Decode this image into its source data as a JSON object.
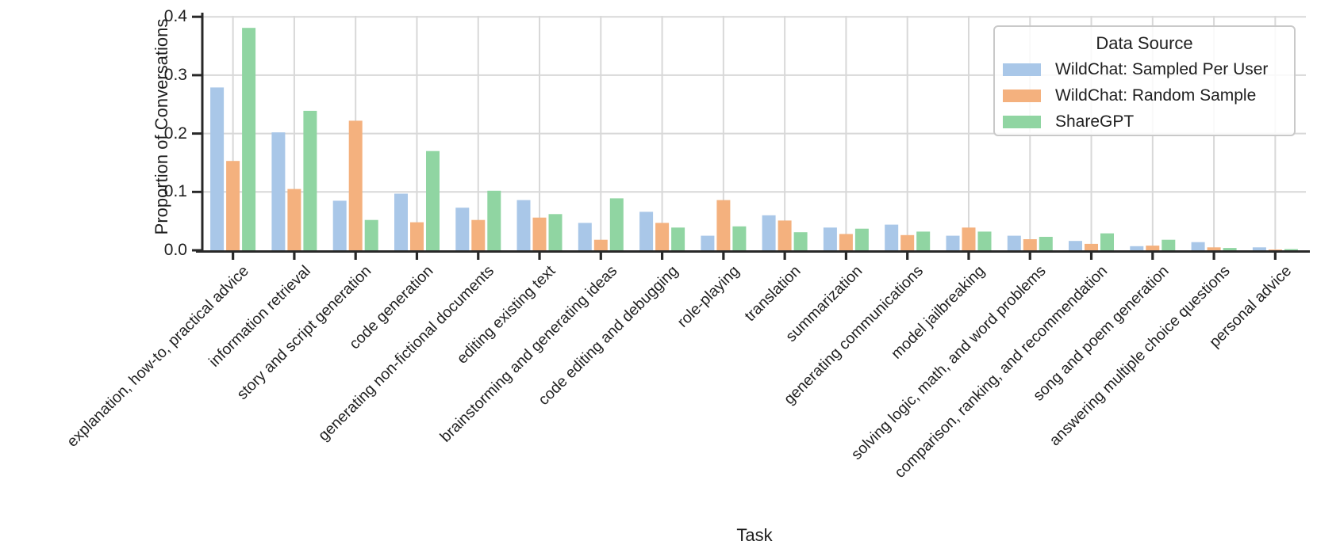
{
  "chart_data": {
    "type": "bar",
    "title": "",
    "xlabel": "Task",
    "ylabel": "Proportion of Conversations",
    "ylim": [
      0,
      0.4
    ],
    "yticks": [
      0.0,
      0.1,
      0.2,
      0.3,
      0.4
    ],
    "ytick_labels": [
      "0.0",
      "0.1",
      "0.2",
      "0.3",
      "0.4"
    ],
    "grid": true,
    "legend_title": "Data Source",
    "legend_position": "upper right",
    "categories": [
      "explanation, how-to, practical advice",
      "information retrieval",
      "story and script generation",
      "code generation",
      "generating non-fictional documents",
      "editing existing text",
      "brainstorming and generating ideas",
      "code editing and debugging",
      "role-playing",
      "translation",
      "summarization",
      "generating communications",
      "model jailbreaking",
      "solving logic, math, and word problems",
      "comparison, ranking, and recommendation",
      "song and poem generation",
      "answering multiple choice questions",
      "personal advice"
    ],
    "series": [
      {
        "name": "WildChat: Sampled Per User",
        "color": "#a9c7e8",
        "values": [
          0.279,
          0.202,
          0.085,
          0.097,
          0.073,
          0.086,
          0.047,
          0.066,
          0.025,
          0.06,
          0.039,
          0.044,
          0.025,
          0.025,
          0.016,
          0.007,
          0.014,
          0.005
        ]
      },
      {
        "name": "WildChat: Random Sample",
        "color": "#f4b17e",
        "values": [
          0.153,
          0.105,
          0.222,
          0.048,
          0.052,
          0.056,
          0.018,
          0.047,
          0.086,
          0.051,
          0.028,
          0.026,
          0.039,
          0.019,
          0.011,
          0.008,
          0.005,
          0.001
        ]
      },
      {
        "name": "ShareGPT",
        "color": "#90d5a2",
        "values": [
          0.381,
          0.239,
          0.052,
          0.17,
          0.102,
          0.062,
          0.089,
          0.039,
          0.041,
          0.031,
          0.037,
          0.032,
          0.032,
          0.023,
          0.029,
          0.018,
          0.004,
          0.002
        ]
      }
    ],
    "style": {
      "gridline_color": "#d8d8d8",
      "spine_color": "#282828",
      "text_color": "#1f1f1f"
    }
  }
}
